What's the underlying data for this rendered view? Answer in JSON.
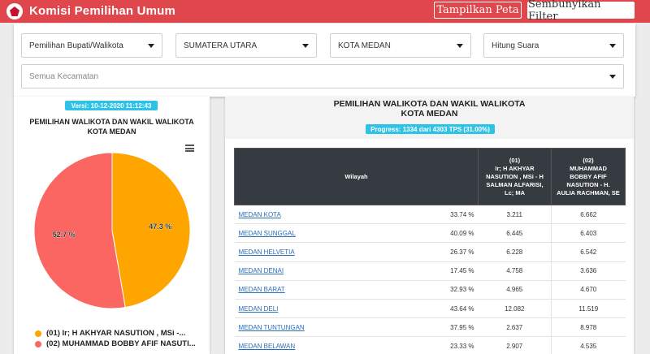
{
  "app": {
    "title": "Komisi Pemilihan Umum",
    "show_map_label": "Tampilkan Peta",
    "hide_filter_label": "Sembunyikan Filter"
  },
  "filters": {
    "election_type": "Pemilihan Bupati/Walikota",
    "province": "SUMATERA UTARA",
    "city": "KOTA MEDAN",
    "count_type": "Hitung Suara",
    "district_placeholder": "Semua Kecamatan"
  },
  "left_panel": {
    "version": "Versi: 10-12-2020 11:12:43",
    "chart_title_line1": "PEMILIHAN WALIKOTA DAN WAKIL WALIKOTA",
    "chart_title_line2": "KOTA MEDAN",
    "legend": [
      "(01) Ir; H AKHYAR NASUTION , MSi -...",
      "(02) MUHAMMAD BOBBY AFIF NASUTI..."
    ]
  },
  "chart_data": {
    "type": "pie",
    "slices": [
      {
        "label": "47.3 %",
        "value": 47.3,
        "color": "#ffa500"
      },
      {
        "label": "52.7 %",
        "value": 52.7,
        "color": "#fb6562"
      }
    ]
  },
  "right_panel": {
    "title_line1": "PEMILIHAN WALIKOTA DAN WAKIL WALIKOTA",
    "title_line2": "KOTA MEDAN",
    "progress": "Progress: 1334 dari 4303 TPS (31.00%)",
    "progress_fraction": 0.31,
    "table": {
      "headers": {
        "wilayah": "Wilayah",
        "c1": [
          "(01)",
          "Ir; H AKHYAR",
          "NASUTION , MSi - H",
          "SALMAN ALFARISI,",
          "Lc; MA"
        ],
        "c2": [
          "(02)",
          "MUHAMMAD",
          "BOBBY AFIF",
          "NASUTION - H.",
          "AULIA RACHMAN, SE"
        ]
      },
      "rows": [
        {
          "name": "MEDAN KOTA",
          "pct": "33.74 %",
          "v1": "3.211",
          "v2": "6.662"
        },
        {
          "name": "MEDAN SUNGGAL",
          "pct": "40.09 %",
          "v1": "6.445",
          "v2": "6.403"
        },
        {
          "name": "MEDAN HELVETIA",
          "pct": "26.37 %",
          "v1": "6.228",
          "v2": "6.542"
        },
        {
          "name": "MEDAN DENAI",
          "pct": "17.45 %",
          "v1": "4.758",
          "v2": "3.636"
        },
        {
          "name": "MEDAN BARAT",
          "pct": "32.93 %",
          "v1": "4.965",
          "v2": "4.670"
        },
        {
          "name": "MEDAN DELI",
          "pct": "43.64 %",
          "v1": "12.082",
          "v2": "11.519"
        },
        {
          "name": "MEDAN TUNTUNGAN",
          "pct": "37.95 %",
          "v1": "2.637",
          "v2": "8.978"
        },
        {
          "name": "MEDAN BELAWAN",
          "pct": "23.33 %",
          "v1": "2.907",
          "v2": "4.535"
        }
      ]
    }
  },
  "colors": {
    "topbar": "#e0474c",
    "badge": "#2ec3e6",
    "table_header": "#353b40",
    "link": "#2a6dbb"
  }
}
